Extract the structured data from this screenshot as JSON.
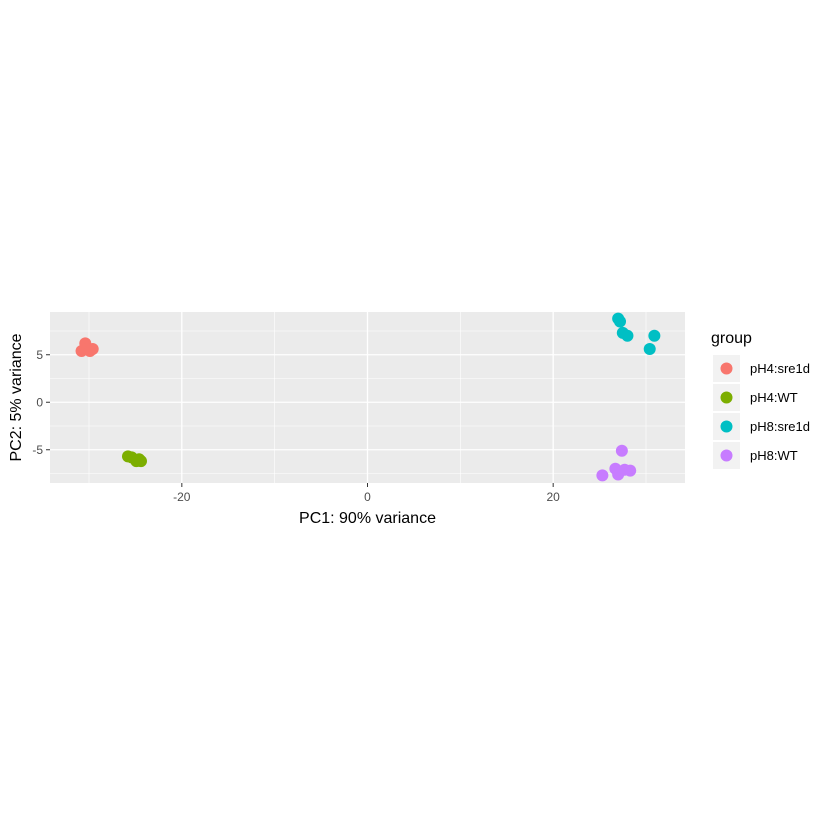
{
  "chart_data": {
    "type": "scatter",
    "xlabel": "PC1: 90% variance",
    "ylabel": "PC2: 5% variance",
    "xlim": [
      -34.2,
      34.2
    ],
    "ylim": [
      -8.5,
      9.5
    ],
    "x_ticks": [
      -20,
      0,
      20
    ],
    "x_tick_labels": [
      "-20",
      "0",
      "20"
    ],
    "y_ticks": [
      -5,
      0,
      5
    ],
    "y_tick_labels": [
      "-5",
      "0",
      "5"
    ],
    "grid": true,
    "background": "#ebebeb",
    "legend": {
      "title": "group",
      "placement": "right"
    },
    "series": [
      {
        "name": "pH4:sre1d",
        "color": "#f8766d",
        "points": [
          {
            "x": -30.8,
            "y": 5.4
          },
          {
            "x": -30.4,
            "y": 6.2
          },
          {
            "x": -30.2,
            "y": 5.6
          },
          {
            "x": -29.9,
            "y": 5.4
          },
          {
            "x": -29.6,
            "y": 5.6
          }
        ]
      },
      {
        "name": "pH4:WT",
        "color": "#7cae00",
        "points": [
          {
            "x": -25.8,
            "y": -5.7
          },
          {
            "x": -25.4,
            "y": -5.8
          },
          {
            "x": -24.9,
            "y": -6.2
          },
          {
            "x": -24.6,
            "y": -6.0
          },
          {
            "x": -24.4,
            "y": -6.2
          }
        ]
      },
      {
        "name": "pH8:sre1d",
        "color": "#00bfc4",
        "points": [
          {
            "x": 27.0,
            "y": 8.8
          },
          {
            "x": 27.2,
            "y": 8.5
          },
          {
            "x": 27.5,
            "y": 7.3
          },
          {
            "x": 28.0,
            "y": 7.0
          },
          {
            "x": 30.4,
            "y": 5.6
          },
          {
            "x": 30.9,
            "y": 7.0
          }
        ]
      },
      {
        "name": "pH8:WT",
        "color": "#c77cff",
        "points": [
          {
            "x": 25.3,
            "y": -7.7
          },
          {
            "x": 26.7,
            "y": -7.0
          },
          {
            "x": 27.0,
            "y": -7.6
          },
          {
            "x": 27.4,
            "y": -5.1
          },
          {
            "x": 27.7,
            "y": -7.1
          },
          {
            "x": 28.3,
            "y": -7.2
          }
        ]
      }
    ]
  }
}
